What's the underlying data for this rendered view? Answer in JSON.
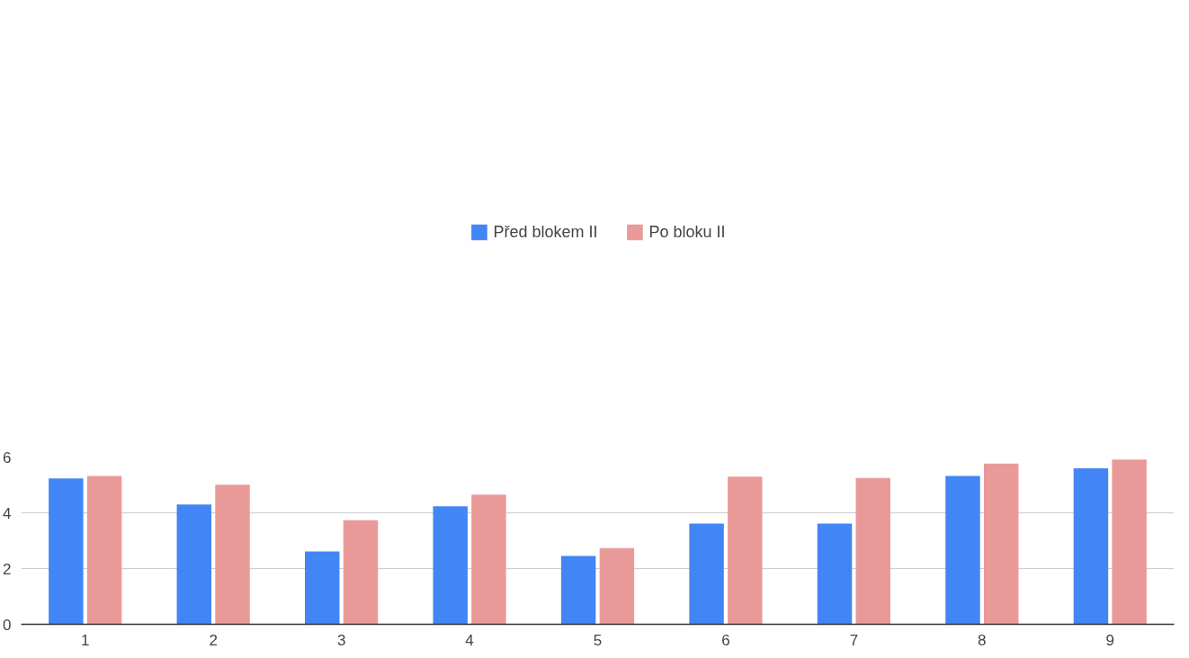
{
  "chart_data": {
    "type": "bar",
    "categories": [
      "1",
      "2",
      "3",
      "4",
      "5",
      "6",
      "7",
      "8",
      "9"
    ],
    "series": [
      {
        "name": "Před blokem II",
        "color": "#4285f4",
        "values": [
          5.23,
          4.3,
          2.61,
          4.23,
          2.45,
          3.61,
          3.61,
          5.32,
          5.6
        ]
      },
      {
        "name": "Po bloku II",
        "color": "#ea9999",
        "values": [
          5.32,
          5.01,
          3.73,
          4.65,
          2.73,
          5.3,
          5.25,
          5.77,
          5.91
        ]
      }
    ],
    "ylim": [
      0,
      6
    ],
    "yticks": [
      0,
      2,
      4,
      6
    ],
    "grid": "y",
    "legend": "top"
  }
}
